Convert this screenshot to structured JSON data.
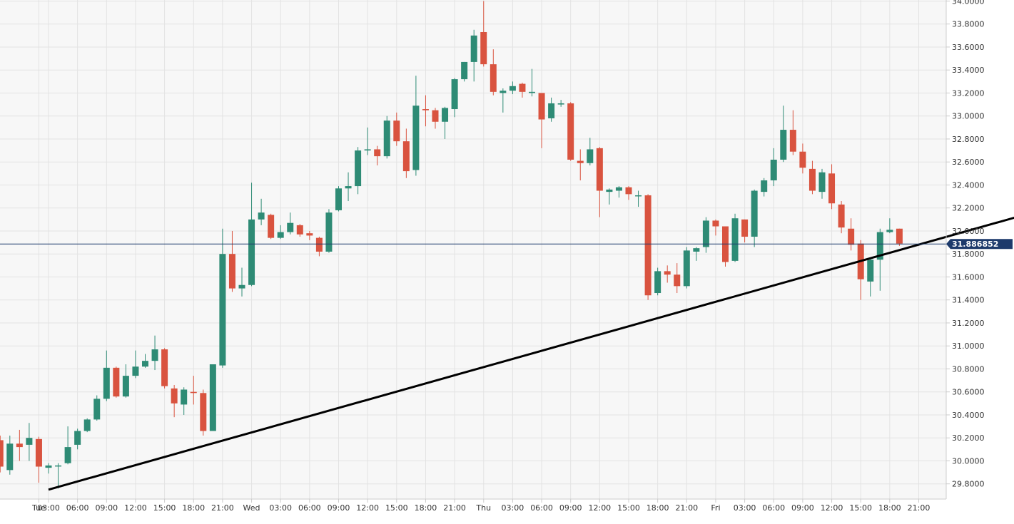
{
  "chart_data": {
    "type": "candlestick",
    "colors": {
      "up": "#2e8b75",
      "down": "#d9533f",
      "background": "#f7f7f7",
      "grid": "#e3e3e3",
      "axis": "#cccccc",
      "trendline": "#000000",
      "current_price_line": "#1d3a6b",
      "price_tag": "#1d3a6b"
    },
    "ylim": [
      29.7,
      34.0
    ],
    "grid": true,
    "y_ticks": [
      "29.8000",
      "30.0000",
      "30.2000",
      "30.4000",
      "30.6000",
      "30.8000",
      "31.0000",
      "31.2000",
      "31.4000",
      "31.6000",
      "31.8000",
      "32.0000",
      "32.2000",
      "32.4000",
      "32.6000",
      "32.8000",
      "33.0000",
      "33.2000",
      "33.4000",
      "33.6000",
      "33.8000",
      "34.0000"
    ],
    "x_ticks": [
      {
        "i": -1,
        "label": "Tue"
      },
      {
        "i": 0,
        "label": "03:00"
      },
      {
        "i": 3,
        "label": "06:00"
      },
      {
        "i": 6,
        "label": "09:00"
      },
      {
        "i": 9,
        "label": "12:00"
      },
      {
        "i": 12,
        "label": "15:00"
      },
      {
        "i": 15,
        "label": "18:00"
      },
      {
        "i": 18,
        "label": "21:00"
      },
      {
        "i": 21,
        "label": "Wed"
      },
      {
        "i": 24,
        "label": "03:00"
      },
      {
        "i": 27,
        "label": "06:00"
      },
      {
        "i": 30,
        "label": "09:00"
      },
      {
        "i": 33,
        "label": "12:00"
      },
      {
        "i": 36,
        "label": "15:00"
      },
      {
        "i": 39,
        "label": "18:00"
      },
      {
        "i": 42,
        "label": "21:00"
      },
      {
        "i": 45,
        "label": "Thu"
      },
      {
        "i": 48,
        "label": "03:00"
      },
      {
        "i": 51,
        "label": "06:00"
      },
      {
        "i": 54,
        "label": "09:00"
      },
      {
        "i": 57,
        "label": "12:00"
      },
      {
        "i": 60,
        "label": "15:00"
      },
      {
        "i": 63,
        "label": "18:00"
      },
      {
        "i": 66,
        "label": "21:00"
      },
      {
        "i": 69,
        "label": "Fri"
      },
      {
        "i": 72,
        "label": "03:00"
      },
      {
        "i": 75,
        "label": "06:00"
      },
      {
        "i": 78,
        "label": "09:00"
      },
      {
        "i": 81,
        "label": "12:00"
      },
      {
        "i": 84,
        "label": "15:00"
      },
      {
        "i": 87,
        "label": "18:00"
      },
      {
        "i": 90,
        "label": "21:00"
      }
    ],
    "candles": [
      {
        "i": -5,
        "o": 30.18,
        "h": 30.22,
        "c": 29.95,
        "l": 29.9
      },
      {
        "i": -4,
        "o": 29.92,
        "h": 30.22,
        "c": 30.15,
        "l": 29.88
      },
      {
        "i": -3,
        "o": 30.15,
        "h": 30.27,
        "c": 30.12,
        "l": 30.0
      },
      {
        "i": -2,
        "o": 30.14,
        "h": 30.33,
        "c": 30.2,
        "l": 30.0
      },
      {
        "i": -1,
        "o": 30.19,
        "h": 30.21,
        "c": 29.95,
        "l": 29.81
      },
      {
        "i": 0,
        "o": 29.94,
        "h": 29.98,
        "c": 29.96,
        "l": 29.89
      },
      {
        "i": 1,
        "o": 29.96,
        "h": 29.98,
        "c": 29.96,
        "l": 29.76
      },
      {
        "i": 2,
        "o": 29.98,
        "h": 30.3,
        "c": 30.12,
        "l": 29.97
      },
      {
        "i": 3,
        "o": 30.14,
        "h": 30.28,
        "c": 30.26,
        "l": 30.1
      },
      {
        "i": 4,
        "o": 30.26,
        "h": 30.37,
        "c": 30.36,
        "l": 30.25
      },
      {
        "i": 5,
        "o": 30.36,
        "h": 30.57,
        "c": 30.54,
        "l": 30.35
      },
      {
        "i": 6,
        "o": 30.54,
        "h": 30.96,
        "c": 30.81,
        "l": 30.52
      },
      {
        "i": 7,
        "o": 30.81,
        "h": 30.82,
        "c": 30.56,
        "l": 30.55
      },
      {
        "i": 8,
        "o": 30.56,
        "h": 30.84,
        "c": 30.74,
        "l": 30.55
      },
      {
        "i": 9,
        "o": 30.74,
        "h": 30.96,
        "c": 30.82,
        "l": 30.72
      },
      {
        "i": 10,
        "o": 30.82,
        "h": 30.93,
        "c": 30.87,
        "l": 30.81
      },
      {
        "i": 11,
        "o": 30.87,
        "h": 31.09,
        "c": 30.97,
        "l": 30.79
      },
      {
        "i": 12,
        "o": 30.97,
        "h": 30.98,
        "c": 30.65,
        "l": 30.63
      },
      {
        "i": 13,
        "o": 30.63,
        "h": 30.66,
        "c": 30.5,
        "l": 30.38
      },
      {
        "i": 14,
        "o": 30.49,
        "h": 30.64,
        "c": 30.62,
        "l": 30.4
      },
      {
        "i": 15,
        "o": 30.6,
        "h": 30.74,
        "c": 30.59,
        "l": 30.49
      },
      {
        "i": 16,
        "o": 30.59,
        "h": 30.62,
        "c": 30.26,
        "l": 30.22
      },
      {
        "i": 17,
        "o": 30.26,
        "h": 30.84,
        "c": 30.84,
        "l": 30.26
      },
      {
        "i": 18,
        "o": 30.83,
        "h": 32.02,
        "c": 31.8,
        "l": 30.81
      },
      {
        "i": 19,
        "o": 31.8,
        "h": 32.0,
        "c": 31.5,
        "l": 31.47
      },
      {
        "i": 20,
        "o": 31.5,
        "h": 31.68,
        "c": 31.53,
        "l": 31.43
      },
      {
        "i": 21,
        "o": 31.53,
        "h": 32.42,
        "c": 32.1,
        "l": 31.52
      },
      {
        "i": 22,
        "o": 32.1,
        "h": 32.28,
        "c": 32.16,
        "l": 32.05
      },
      {
        "i": 23,
        "o": 32.14,
        "h": 32.15,
        "c": 31.94,
        "l": 31.93
      },
      {
        "i": 24,
        "o": 31.94,
        "h": 32.05,
        "c": 31.99,
        "l": 31.93
      },
      {
        "i": 25,
        "o": 31.99,
        "h": 32.16,
        "c": 32.07,
        "l": 31.97
      },
      {
        "i": 26,
        "o": 32.05,
        "h": 32.06,
        "c": 31.97,
        "l": 31.95
      },
      {
        "i": 27,
        "o": 31.98,
        "h": 32.0,
        "c": 31.96,
        "l": 31.92
      },
      {
        "i": 28,
        "o": 31.94,
        "h": 31.95,
        "c": 31.82,
        "l": 31.78
      },
      {
        "i": 29,
        "o": 31.82,
        "h": 32.19,
        "c": 32.16,
        "l": 31.81
      },
      {
        "i": 30,
        "o": 32.18,
        "h": 32.39,
        "c": 32.37,
        "l": 32.17
      },
      {
        "i": 31,
        "o": 32.37,
        "h": 32.51,
        "c": 32.39,
        "l": 32.26
      },
      {
        "i": 32,
        "o": 32.39,
        "h": 32.73,
        "c": 32.7,
        "l": 32.32
      },
      {
        "i": 33,
        "o": 32.7,
        "h": 32.9,
        "c": 32.71,
        "l": 32.66
      },
      {
        "i": 34,
        "o": 32.71,
        "h": 32.74,
        "c": 32.65,
        "l": 32.57
      },
      {
        "i": 35,
        "o": 32.65,
        "h": 33.0,
        "c": 32.96,
        "l": 32.63
      },
      {
        "i": 36,
        "o": 32.96,
        "h": 33.03,
        "c": 32.78,
        "l": 32.74
      },
      {
        "i": 37,
        "o": 32.78,
        "h": 32.89,
        "c": 32.52,
        "l": 32.46
      },
      {
        "i": 38,
        "o": 32.53,
        "h": 33.35,
        "c": 33.09,
        "l": 32.48
      },
      {
        "i": 39,
        "o": 33.06,
        "h": 33.18,
        "c": 33.05,
        "l": 32.91
      },
      {
        "i": 40,
        "o": 33.05,
        "h": 33.07,
        "c": 32.95,
        "l": 32.89
      },
      {
        "i": 41,
        "o": 32.95,
        "h": 33.08,
        "c": 33.07,
        "l": 32.8
      },
      {
        "i": 42,
        "o": 33.06,
        "h": 33.33,
        "c": 33.32,
        "l": 32.99
      },
      {
        "i": 43,
        "o": 33.32,
        "h": 33.47,
        "c": 33.47,
        "l": 33.3
      },
      {
        "i": 44,
        "o": 33.47,
        "h": 33.75,
        "c": 33.7,
        "l": 33.3
      },
      {
        "i": 45,
        "o": 33.73,
        "h": 34.0,
        "c": 33.45,
        "l": 33.43
      },
      {
        "i": 46,
        "o": 33.45,
        "h": 33.58,
        "c": 33.21,
        "l": 33.18
      },
      {
        "i": 47,
        "o": 33.2,
        "h": 33.24,
        "c": 33.22,
        "l": 33.03
      },
      {
        "i": 48,
        "o": 33.22,
        "h": 33.3,
        "c": 33.26,
        "l": 33.19
      },
      {
        "i": 49,
        "o": 33.28,
        "h": 33.29,
        "c": 33.21,
        "l": 33.16
      },
      {
        "i": 50,
        "o": 33.2,
        "h": 33.41,
        "c": 33.21,
        "l": 33.17
      },
      {
        "i": 51,
        "o": 33.2,
        "h": 33.2,
        "c": 32.97,
        "l": 32.72
      },
      {
        "i": 52,
        "o": 32.98,
        "h": 33.16,
        "c": 33.11,
        "l": 32.95
      },
      {
        "i": 53,
        "o": 33.1,
        "h": 33.14,
        "c": 33.11,
        "l": 33.08
      },
      {
        "i": 54,
        "o": 33.11,
        "h": 33.12,
        "c": 32.62,
        "l": 32.61
      },
      {
        "i": 55,
        "o": 32.61,
        "h": 32.71,
        "c": 32.59,
        "l": 32.44
      },
      {
        "i": 56,
        "o": 32.59,
        "h": 32.81,
        "c": 32.71,
        "l": 32.57
      },
      {
        "i": 57,
        "o": 32.72,
        "h": 32.73,
        "c": 32.35,
        "l": 32.12
      },
      {
        "i": 58,
        "o": 32.34,
        "h": 32.37,
        "c": 32.36,
        "l": 32.23
      },
      {
        "i": 59,
        "o": 32.35,
        "h": 32.39,
        "c": 32.38,
        "l": 32.29
      },
      {
        "i": 60,
        "o": 32.38,
        "h": 32.39,
        "c": 32.32,
        "l": 32.27
      },
      {
        "i": 61,
        "o": 32.31,
        "h": 32.35,
        "c": 32.31,
        "l": 32.21
      },
      {
        "i": 62,
        "o": 32.31,
        "h": 32.32,
        "c": 31.44,
        "l": 31.4
      },
      {
        "i": 63,
        "o": 31.46,
        "h": 31.68,
        "c": 31.65,
        "l": 31.44
      },
      {
        "i": 64,
        "o": 31.65,
        "h": 31.7,
        "c": 31.62,
        "l": 31.55
      },
      {
        "i": 65,
        "o": 31.62,
        "h": 31.72,
        "c": 31.52,
        "l": 31.46
      },
      {
        "i": 66,
        "o": 31.52,
        "h": 31.86,
        "c": 31.83,
        "l": 31.5
      },
      {
        "i": 67,
        "o": 31.82,
        "h": 31.86,
        "c": 31.85,
        "l": 31.74
      },
      {
        "i": 68,
        "o": 31.86,
        "h": 32.12,
        "c": 32.09,
        "l": 31.81
      },
      {
        "i": 69,
        "o": 32.09,
        "h": 32.1,
        "c": 32.04,
        "l": 31.96
      },
      {
        "i": 70,
        "o": 32.04,
        "h": 32.04,
        "c": 31.73,
        "l": 31.69
      },
      {
        "i": 71,
        "o": 31.74,
        "h": 32.15,
        "c": 32.11,
        "l": 31.73
      },
      {
        "i": 72,
        "o": 32.1,
        "h": 32.1,
        "c": 31.95,
        "l": 31.9
      },
      {
        "i": 73,
        "o": 31.95,
        "h": 32.36,
        "c": 32.35,
        "l": 31.86
      },
      {
        "i": 74,
        "o": 32.34,
        "h": 32.46,
        "c": 32.44,
        "l": 32.3
      },
      {
        "i": 75,
        "o": 32.44,
        "h": 32.72,
        "c": 32.62,
        "l": 32.39
      },
      {
        "i": 76,
        "o": 32.62,
        "h": 33.09,
        "c": 32.88,
        "l": 32.6
      },
      {
        "i": 77,
        "o": 32.88,
        "h": 33.05,
        "c": 32.69,
        "l": 32.66
      },
      {
        "i": 78,
        "o": 32.69,
        "h": 32.76,
        "c": 32.55,
        "l": 32.5
      },
      {
        "i": 79,
        "o": 32.54,
        "h": 32.61,
        "c": 32.35,
        "l": 32.32
      },
      {
        "i": 80,
        "o": 32.34,
        "h": 32.54,
        "c": 32.51,
        "l": 32.28
      },
      {
        "i": 81,
        "o": 32.5,
        "h": 32.58,
        "c": 32.24,
        "l": 32.19
      },
      {
        "i": 82,
        "o": 32.23,
        "h": 32.26,
        "c": 32.03,
        "l": 31.98
      },
      {
        "i": 83,
        "o": 32.02,
        "h": 32.11,
        "c": 31.88,
        "l": 31.83
      },
      {
        "i": 84,
        "o": 31.89,
        "h": 31.92,
        "c": 31.58,
        "l": 31.4
      },
      {
        "i": 85,
        "o": 31.56,
        "h": 31.76,
        "c": 31.75,
        "l": 31.43
      },
      {
        "i": 86,
        "o": 31.75,
        "h": 32.02,
        "c": 31.99,
        "l": 31.48
      },
      {
        "i": 87,
        "o": 31.99,
        "h": 32.11,
        "c": 32.01,
        "l": 31.98
      },
      {
        "i": 88,
        "o": 32.02,
        "h": 32.02,
        "c": 31.89,
        "l": 31.87
      }
    ],
    "trendline": {
      "from": {
        "i": 0,
        "price": 29.75
      },
      "to": {
        "i": 106,
        "price": 32.26
      }
    },
    "current_price": 31.886852,
    "current_price_label": "31.886852"
  }
}
